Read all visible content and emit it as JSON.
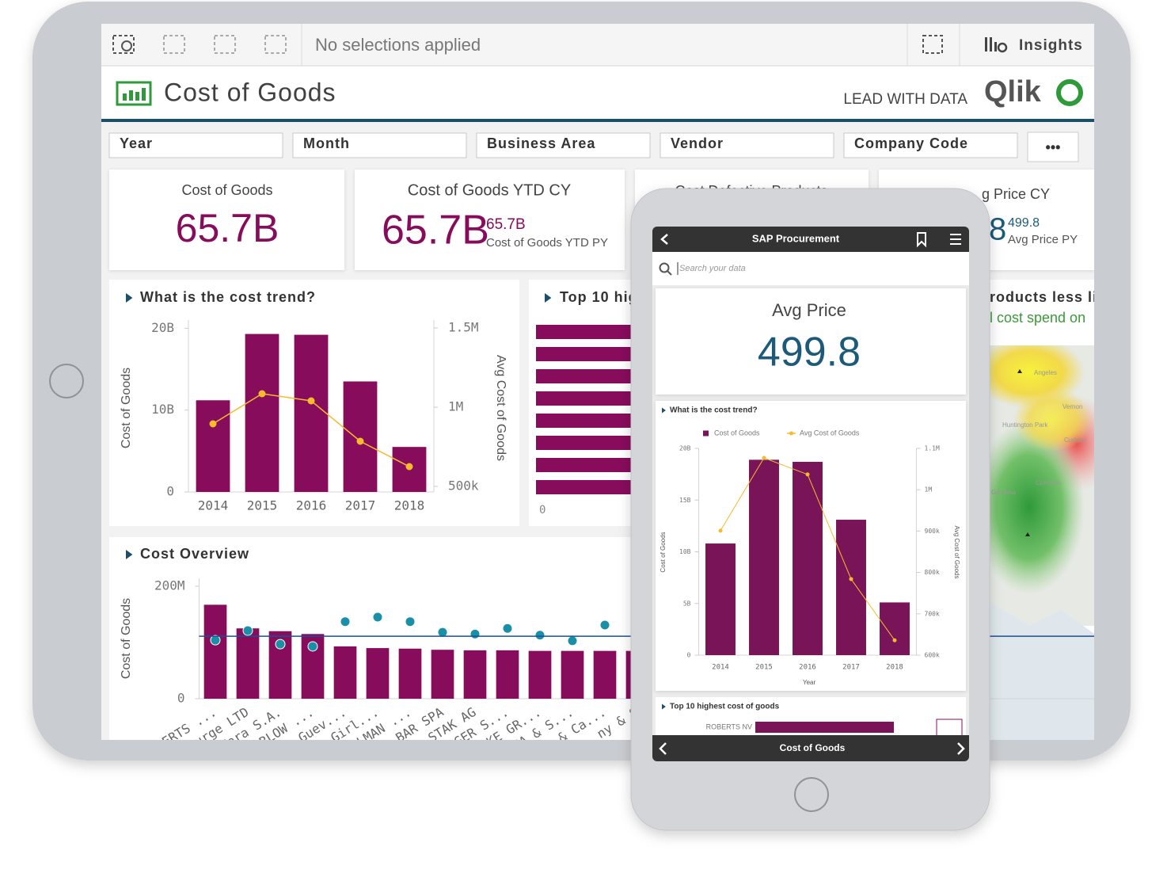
{
  "toolbar": {
    "selection_status": "No selections applied",
    "insights": "Insights"
  },
  "header": {
    "title": "Cost of Goods",
    "tagline": "LEAD WITH DATA",
    "brand": "Qlik"
  },
  "filters": [
    "Year",
    "Month",
    "Business Area",
    "Vendor",
    "Company Code"
  ],
  "more": "•••",
  "kpis": [
    {
      "label": "Cost of Goods",
      "value": "65.7B"
    },
    {
      "label": "Cost of Goods YTD CY",
      "value": "65.7B",
      "compare_value": "65.7B",
      "compare_label": "Cost of Goods YTD PY"
    },
    {
      "label": "Cost Defective Products"
    },
    {
      "label": "g Price CY",
      "value": "8",
      "compare_value": "499.8",
      "compare_label": "Avg Price PY"
    }
  ],
  "top10": {
    "title": "Top 10 hig",
    "axis_start": 0
  },
  "map": {
    "title": "roducts less lik",
    "subtitle": "l cost spend on",
    "places": [
      "Angeles",
      "Vernon",
      "Huntington Park",
      "Cudahy",
      "Compton",
      "Gardena"
    ]
  },
  "phone": {
    "title": "SAP Procurement",
    "search": "Search your data",
    "kpi_label": "Avg Price",
    "kpi_value": "499.8",
    "top10_title": "Top 10 highest cost of goods",
    "top10_first": "ROBERTS NV",
    "footer": "Cost of Goods"
  },
  "chart_data": [
    {
      "type": "combo",
      "title": "What is the cost trend?",
      "categories": [
        "2014",
        "2015",
        "2016",
        "2017",
        "2018"
      ],
      "series": [
        {
          "type": "bar",
          "color": "#870c5c",
          "values": [
            11200000000,
            19300000000,
            19200000000,
            13500000000,
            5500000000
          ]
        },
        {
          "type": "line",
          "color": "#f5bb2a",
          "axis": "y2",
          "values": [
            895000,
            1085000,
            1040000,
            785000,
            625000
          ]
        }
      ],
      "y_label": "Cost of Goods",
      "y2_label": "Avg Cost of Goods",
      "ylim": [
        0,
        21000000000
      ],
      "yticks": [
        0,
        {
          "value": 10000000000,
          "label": "10B"
        },
        {
          "value": 20000000000,
          "label": "20B"
        }
      ],
      "y2lim": [
        465000,
        1550000
      ],
      "y2ticks": [
        {
          "value": 500000,
          "label": "500k"
        },
        {
          "value": 1000000,
          "label": "1M"
        },
        {
          "value": 1500000,
          "label": "1.5M"
        }
      ],
      "grid": false
    },
    {
      "type": "combo",
      "title": "Cost Overview",
      "categories": [
        "ROBERTS ...",
        "urge LTD",
        "Mara S.A.",
        "RLOW ...",
        "x Guev...",
        "azi-Girl...",
        "OLMAN ...",
        "BAR SPA",
        "STAK AG",
        "RGER S...",
        "SKE GR...",
        "ANA & S...",
        "y & Ca...",
        "ny & S"
      ],
      "series": [
        {
          "type": "bar",
          "color": "#870c5c",
          "values": [
            167000000,
            125000000,
            120000000,
            115000000,
            93000000,
            90000000,
            89000000,
            87000000,
            86000000,
            86000000,
            85000000,
            85000000,
            85000000,
            85000000
          ]
        },
        {
          "type": "scatter",
          "color": "#1a8fa8",
          "values": [
            104000000,
            121000000,
            97000000,
            93000000,
            137000000,
            145000000,
            137000000,
            118000000,
            115000000,
            125000000,
            113000000,
            103000000,
            131000000,
            null
          ]
        }
      ],
      "reference_line": 111000000,
      "reference_color": "#1d4f91",
      "y_label": "Cost of Goods",
      "ylim": [
        0,
        214000000
      ],
      "yticks": [
        0,
        {
          "value": 200000000,
          "label": "200M"
        }
      ],
      "grid": false
    },
    {
      "type": "combo",
      "title": "What is the cost trend?",
      "categories": [
        "2014",
        "2015",
        "2016",
        "2017",
        "2018"
      ],
      "series": [
        {
          "name": "Cost of Goods",
          "type": "bar",
          "color": "#7a1459",
          "values": [
            10800000000,
            18900000000,
            18700000000,
            13100000000,
            5100000000
          ]
        },
        {
          "name": "Avg Cost of Goods",
          "type": "line",
          "color": "#f5bb2a",
          "axis": "y2",
          "values": [
            901000,
            1077000,
            1037000,
            784000,
            636000
          ]
        }
      ],
      "y_label": "Cost of Goods",
      "y2_label": "Avg Cost of Goods",
      "x_label": "Year",
      "ylim": [
        0,
        20000000000
      ],
      "yticks": [
        0,
        {
          "value": 5000000000,
          "label": "5B"
        },
        {
          "value": 10000000000,
          "label": "10B"
        },
        {
          "value": 15000000000,
          "label": "15B"
        },
        {
          "value": 20000000000,
          "label": "20B"
        }
      ],
      "y2lim": [
        600000,
        1100000
      ],
      "y2ticks": [
        {
          "value": 600000,
          "label": "600k"
        },
        {
          "value": 700000,
          "label": "700k"
        },
        {
          "value": 800000,
          "label": "800k"
        },
        {
          "value": 900000,
          "label": "900k"
        },
        {
          "value": 1000000,
          "label": "1M"
        },
        {
          "value": 1100000,
          "label": "1.1M"
        }
      ],
      "legend": "top",
      "grid": false
    }
  ]
}
